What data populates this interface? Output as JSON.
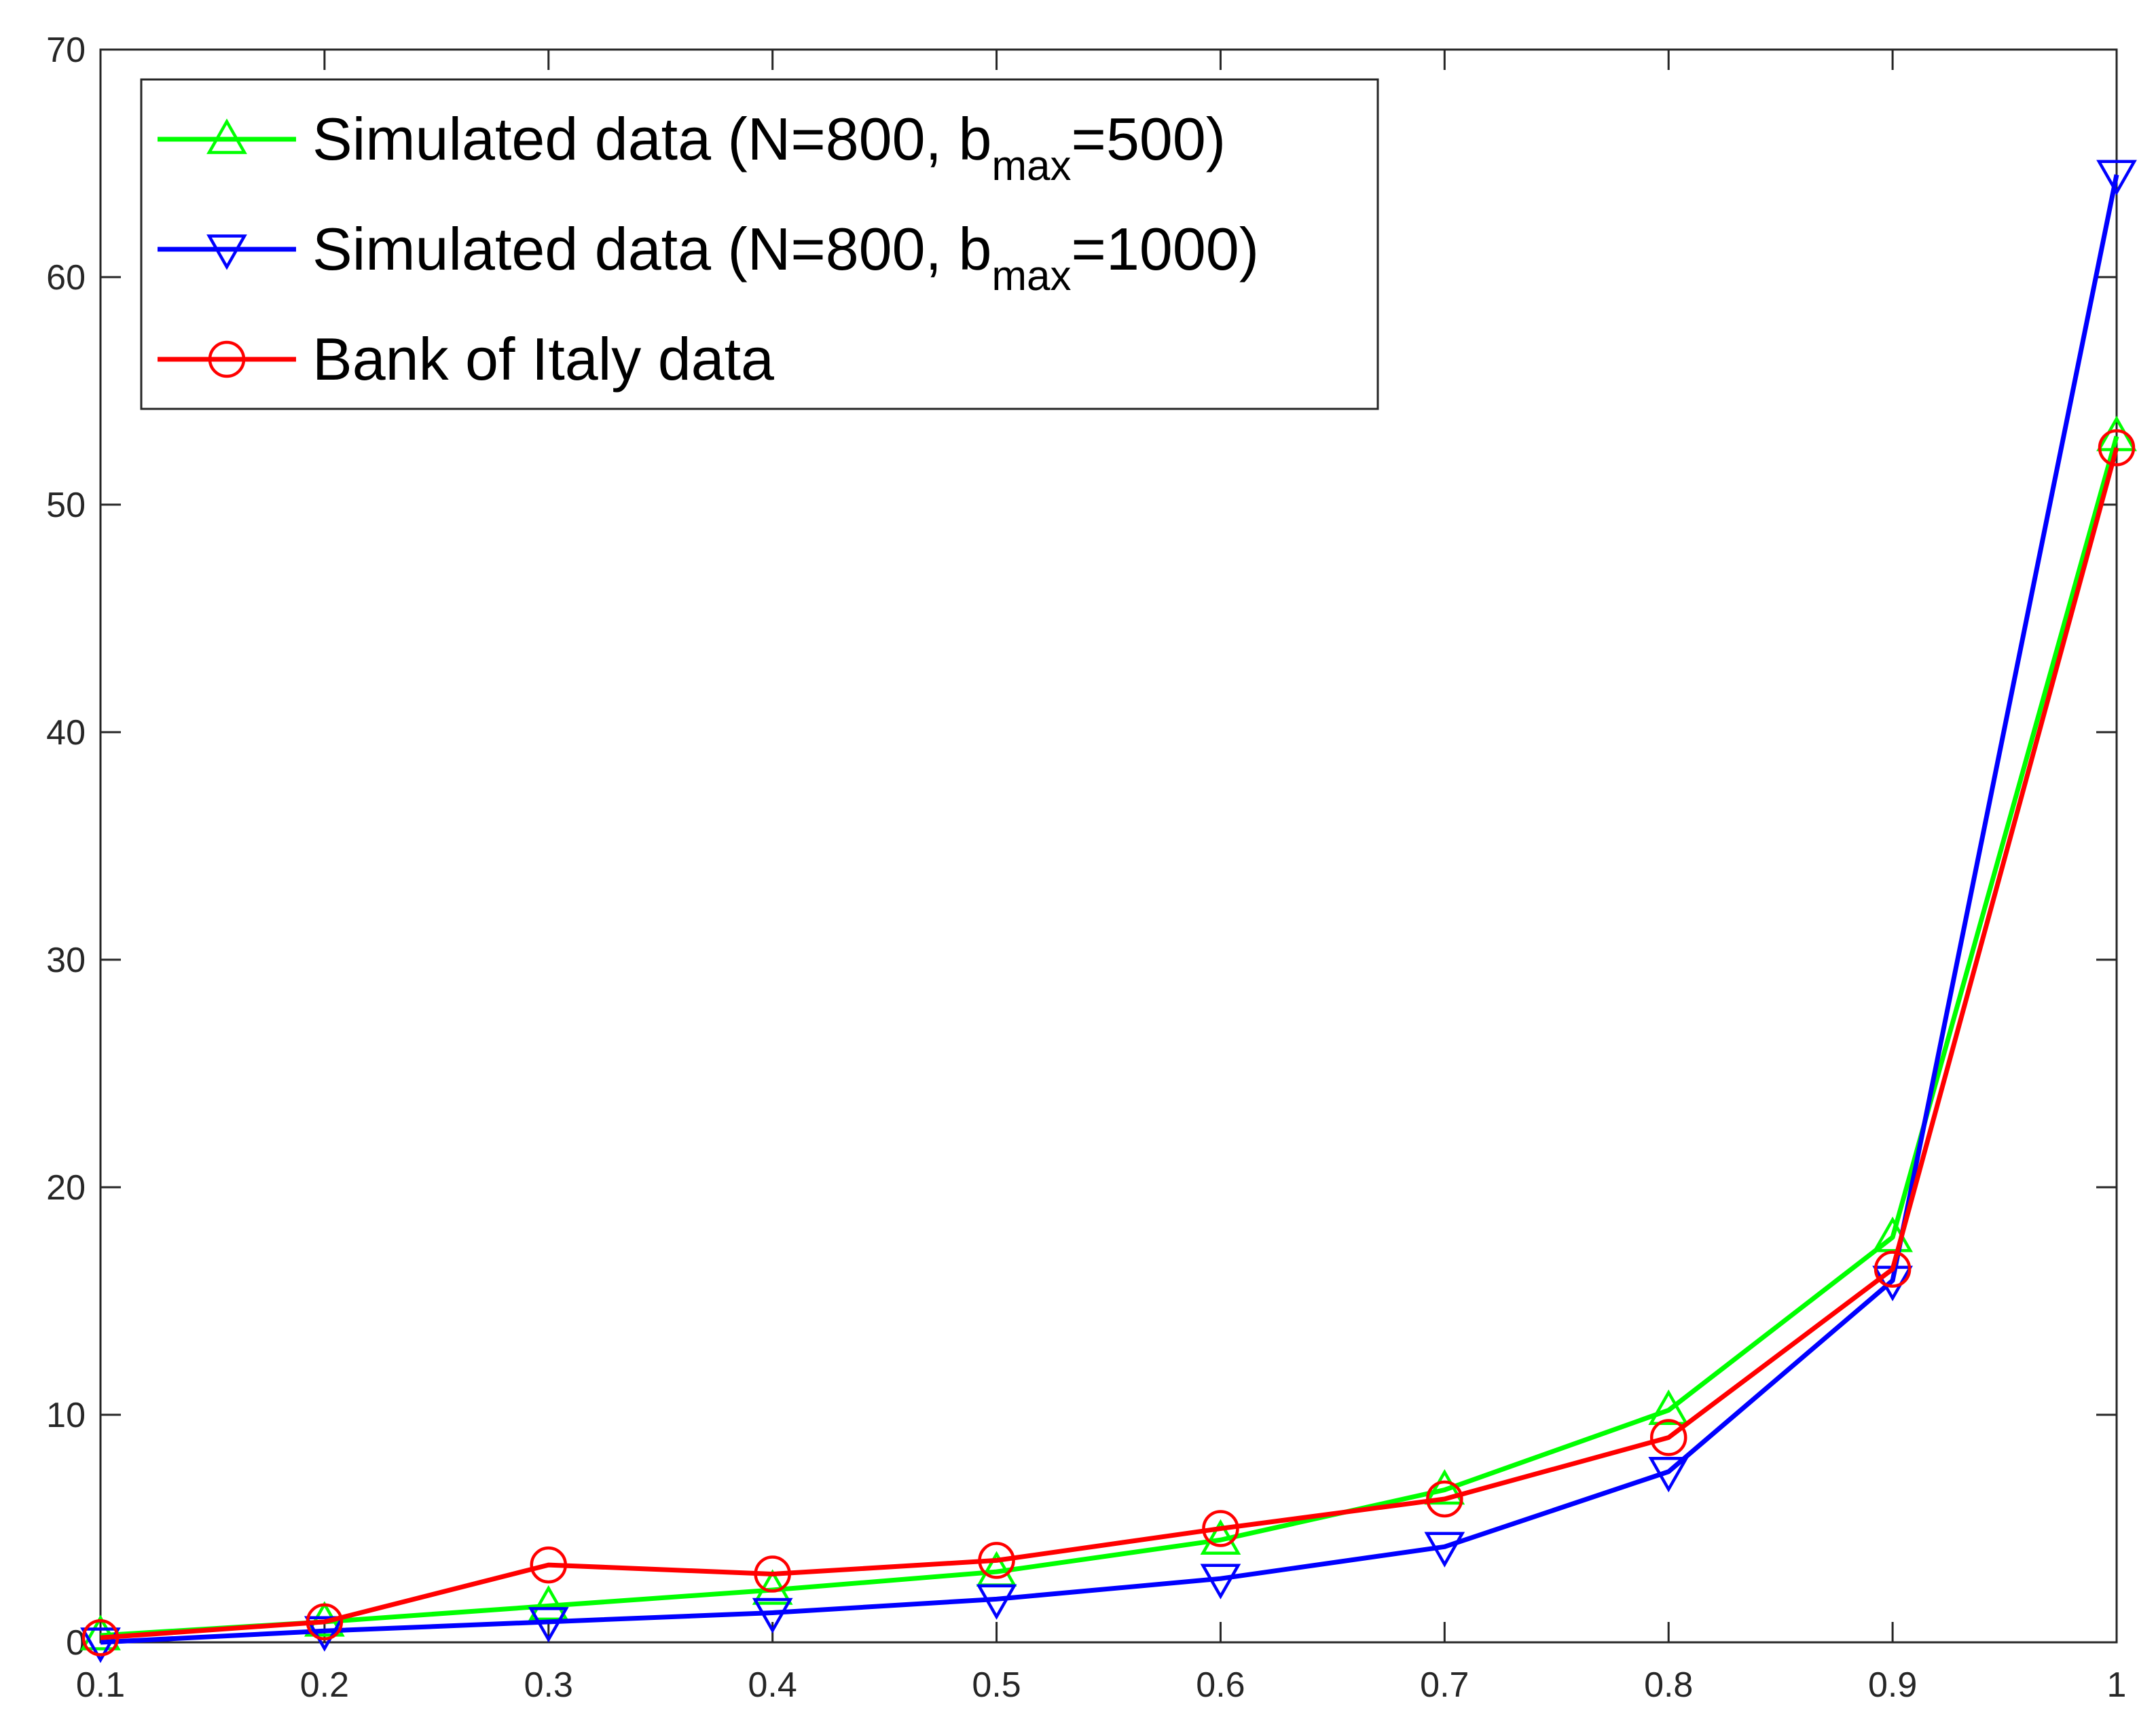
{
  "chart_data": {
    "type": "line",
    "title": "",
    "xlabel": "",
    "ylabel": "",
    "xlim": [
      0.1,
      1
    ],
    "ylim": [
      0,
      70
    ],
    "x_ticks": [
      0.1,
      0.2,
      0.3,
      0.4,
      0.5,
      0.6,
      0.7,
      0.8,
      0.9,
      1
    ],
    "x_tick_labels": [
      "0.1",
      "0.2",
      "0.3",
      "0.4",
      "0.5",
      "0.6",
      "0.7",
      "0.8",
      "0.9",
      "1"
    ],
    "y_ticks": [
      0,
      10,
      20,
      30,
      40,
      50,
      60,
      70
    ],
    "y_tick_labels": [
      "0",
      "10",
      "20",
      "30",
      "40",
      "50",
      "60",
      "70"
    ],
    "grid": false,
    "legend_position": "top-left",
    "x": [
      0.1,
      0.2,
      0.3,
      0.4,
      0.5,
      0.6,
      0.7,
      0.8,
      0.9,
      1
    ],
    "series": [
      {
        "name": "Simulated data (N=800, b",
        "name_subscript": "max",
        "name_suffix": "=500)",
        "color": "#00ff00",
        "marker": "triangle-up",
        "values": [
          0.3,
          0.9,
          1.6,
          2.3,
          3.1,
          4.5,
          6.7,
          10.2,
          17.8,
          53.0
        ]
      },
      {
        "name": "Simulated data (N=800, b",
        "name_subscript": "max",
        "name_suffix": "=1000)",
        "color": "#0000ff",
        "marker": "triangle-down",
        "values": [
          0.0,
          0.5,
          0.9,
          1.3,
          1.9,
          2.8,
          4.2,
          7.5,
          15.9,
          64.5
        ]
      },
      {
        "name": "Bank of Italy data",
        "name_subscript": "",
        "name_suffix": "",
        "color": "#ff0000",
        "marker": "circle",
        "values": [
          0.2,
          0.9,
          3.4,
          3.0,
          3.6,
          5.0,
          6.3,
          9.0,
          16.4,
          52.5
        ]
      }
    ]
  }
}
